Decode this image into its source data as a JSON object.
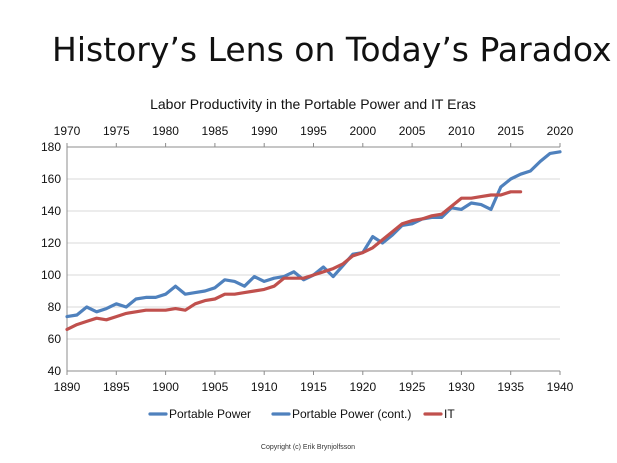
{
  "slide": {
    "title": "History’s Lens on Today’s Paradox",
    "copyright": "Copyright (c) Erik Brynjolfsson"
  },
  "colors": {
    "portable_power": "#4f81bd",
    "it": "#c0504d",
    "grid": "#d9d9d9",
    "axis": "#8c8c8c"
  },
  "chart_data": {
    "type": "line",
    "title": "Labor Productivity in the Portable Power and IT Eras",
    "xlabel": "",
    "ylabel": "",
    "grid": true,
    "legend_position": "bottom",
    "bottom_axis": {
      "range": [
        1890,
        1940
      ],
      "ticks": [
        1890,
        1895,
        1900,
        1905,
        1910,
        1915,
        1920,
        1925,
        1930,
        1935,
        1940
      ]
    },
    "top_axis": {
      "range": [
        1970,
        2020
      ],
      "ticks": [
        1970,
        1975,
        1980,
        1985,
        1990,
        1995,
        2000,
        2005,
        2010,
        2015,
        2020
      ]
    },
    "ylim": [
      40,
      180
    ],
    "yticks": [
      40,
      60,
      80,
      100,
      120,
      140,
      160,
      180
    ],
    "series": [
      {
        "name": "Portable Power",
        "axis": "bottom",
        "color": "#4f81bd",
        "x": [
          1890,
          1891,
          1892,
          1893,
          1894,
          1895,
          1896,
          1897,
          1898,
          1899,
          1900,
          1901,
          1902,
          1903,
          1904,
          1905,
          1906,
          1907,
          1908,
          1909,
          1910,
          1911,
          1912,
          1913,
          1914,
          1915,
          1916,
          1917,
          1918,
          1919,
          1920,
          1921,
          1922,
          1923,
          1924,
          1925,
          1926,
          1927,
          1928,
          1929,
          1930,
          1931,
          1932,
          1933,
          1934,
          1935,
          1936,
          1937,
          1938,
          1939,
          1940
        ],
        "y": [
          74,
          75,
          80,
          77,
          79,
          82,
          80,
          85,
          86,
          86,
          88,
          93,
          88,
          89,
          90,
          92,
          97,
          96,
          93,
          99,
          96,
          98,
          99,
          102,
          97,
          100,
          105,
          99,
          106,
          113,
          114,
          124,
          120,
          125,
          131,
          132,
          135,
          136,
          136,
          142,
          141,
          145,
          144,
          141,
          155,
          160,
          163,
          165,
          171,
          176,
          177
        ]
      },
      {
        "name": "Portable Power (cont.)",
        "axis": "bottom",
        "color": "#4f81bd",
        "x": [],
        "y": []
      },
      {
        "name": "IT",
        "axis": "top",
        "color": "#c0504d",
        "x": [
          1970,
          1971,
          1972,
          1973,
          1974,
          1975,
          1976,
          1977,
          1978,
          1979,
          1980,
          1981,
          1982,
          1983,
          1984,
          1985,
          1986,
          1987,
          1988,
          1989,
          1990,
          1991,
          1992,
          1993,
          1994,
          1995,
          1996,
          1997,
          1998,
          1999,
          2000,
          2001,
          2002,
          2003,
          2004,
          2005,
          2006,
          2007,
          2008,
          2009,
          2010,
          2011,
          2012,
          2013,
          2014,
          2015,
          2016
        ],
        "y": [
          66,
          69,
          71,
          73,
          72,
          74,
          76,
          77,
          78,
          78,
          78,
          79,
          78,
          82,
          84,
          85,
          88,
          88,
          89,
          90,
          91,
          93,
          98,
          98,
          98,
          100,
          102,
          104,
          107,
          112,
          114,
          117,
          122,
          127,
          132,
          134,
          135,
          137,
          138,
          143,
          148,
          148,
          149,
          150,
          150,
          152,
          152
        ]
      }
    ]
  }
}
